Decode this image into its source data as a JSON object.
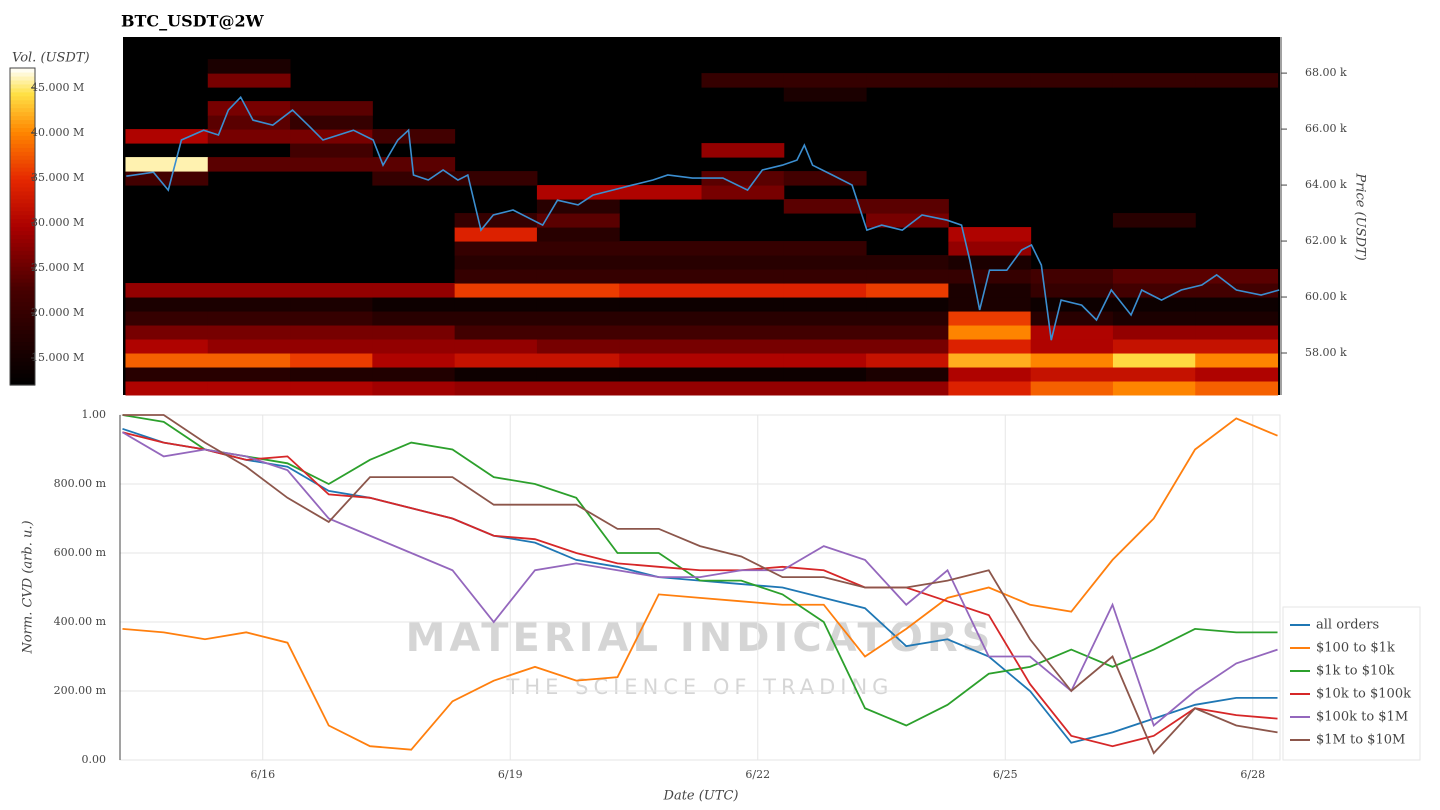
{
  "chart_data": [
    {
      "type": "heatmap",
      "title": "BTC_USDT@2W",
      "ylabel": "Price (USDT)",
      "xlim": [
        14.27,
        28.33
      ],
      "ylim": [
        56500,
        69290
      ],
      "yticks": [
        {
          "value": 58000,
          "label": "58.00 k"
        },
        {
          "value": 60000,
          "label": "60.00 k"
        },
        {
          "value": 62000,
          "label": "62.00 k"
        },
        {
          "value": 64000,
          "label": "64.00 k"
        },
        {
          "value": 66000,
          "label": "66.00 k"
        },
        {
          "value": 68000,
          "label": "68.00 k"
        }
      ],
      "colormap": "hot",
      "colorbar": {
        "label": "Vol. (USDT)",
        "lim": [
          12,
          47.2
        ],
        "ticks": [
          {
            "value": 15,
            "label": "15.000 M"
          },
          {
            "value": 20,
            "label": "20.000 M"
          },
          {
            "value": 25,
            "label": "25.000 M"
          },
          {
            "value": 30,
            "label": "30.000 M"
          },
          {
            "value": 35,
            "label": "35.000 M"
          },
          {
            "value": 40,
            "label": "40.000 M"
          },
          {
            "value": 45,
            "label": "45.000 M"
          }
        ]
      },
      "x_edges": [
        14.3,
        15.3,
        16.3,
        17.3,
        18.3,
        19.3,
        20.3,
        21.3,
        22.3,
        23.3,
        24.3,
        25.3,
        26.3,
        27.3,
        28.3
      ],
      "y_edges": [
        56500,
        57000,
        57500,
        58000,
        58500,
        59000,
        59500,
        60000,
        60500,
        61000,
        61500,
        62000,
        62500,
        63000,
        63500,
        64000,
        64500,
        65000,
        65500,
        66000,
        66500,
        67000,
        67500,
        68000,
        68500,
        69000
      ],
      "z": [
        [
          30,
          30,
          30,
          29,
          28,
          28,
          28,
          28,
          28,
          28,
          34,
          38,
          40,
          38
        ],
        [
          18,
          18,
          17,
          17,
          14,
          14,
          14,
          14,
          14,
          16,
          30,
          32,
          32,
          30
        ],
        [
          38,
          38,
          36,
          30,
          32,
          32,
          30,
          30,
          30,
          32,
          42,
          40,
          44,
          40
        ],
        [
          30,
          28,
          28,
          28,
          28,
          26,
          26,
          26,
          26,
          26,
          34,
          30,
          32,
          32
        ],
        [
          26,
          26,
          26,
          26,
          22,
          22,
          22,
          22,
          22,
          22,
          40,
          30,
          28,
          28
        ],
        [
          20,
          20,
          20,
          18,
          18,
          18,
          18,
          18,
          18,
          18,
          36,
          18,
          16,
          16
        ],
        [
          16,
          16,
          16,
          14,
          14,
          14,
          14,
          14,
          14,
          14,
          16,
          14,
          14,
          14
        ],
        [
          28,
          28,
          28,
          28,
          36,
          36,
          34,
          34,
          34,
          36,
          16,
          20,
          22,
          22
        ],
        [
          null,
          null,
          null,
          null,
          20,
          20,
          20,
          20,
          20,
          20,
          20,
          22,
          24,
          24
        ],
        [
          null,
          null,
          null,
          null,
          18,
          18,
          18,
          18,
          18,
          18,
          16,
          null,
          null,
          null
        ],
        [
          null,
          null,
          null,
          null,
          20,
          20,
          20,
          20,
          20,
          null,
          28,
          null,
          null,
          null
        ],
        [
          null,
          null,
          null,
          null,
          34,
          18,
          null,
          null,
          null,
          null,
          30,
          null,
          null,
          null
        ],
        [
          null,
          null,
          null,
          null,
          20,
          24,
          null,
          null,
          null,
          26,
          null,
          null,
          18,
          null
        ],
        [
          null,
          null,
          null,
          null,
          null,
          18,
          null,
          null,
          24,
          24,
          null,
          null,
          null,
          null
        ],
        [
          null,
          null,
          null,
          null,
          null,
          30,
          30,
          26,
          null,
          null,
          null,
          null,
          null,
          null
        ],
        [
          22,
          null,
          null,
          20,
          20,
          null,
          null,
          24,
          22,
          null,
          null,
          null,
          null,
          null
        ],
        [
          46,
          24,
          24,
          24,
          null,
          null,
          null,
          null,
          null,
          null,
          null,
          null,
          null,
          null
        ],
        [
          null,
          null,
          22,
          null,
          null,
          null,
          null,
          28,
          null,
          null,
          null,
          null,
          null,
          null
        ],
        [
          30,
          26,
          26,
          22,
          null,
          null,
          null,
          null,
          null,
          null,
          null,
          null,
          null,
          null
        ],
        [
          null,
          24,
          20,
          null,
          null,
          null,
          null,
          null,
          null,
          null,
          null,
          null,
          null,
          null
        ],
        [
          null,
          26,
          24,
          null,
          null,
          null,
          null,
          null,
          null,
          null,
          null,
          null,
          null,
          null
        ],
        [
          null,
          null,
          null,
          null,
          null,
          null,
          null,
          null,
          16,
          null,
          null,
          null,
          null,
          null
        ],
        [
          null,
          26,
          null,
          null,
          null,
          null,
          null,
          20,
          20,
          20,
          20,
          20,
          20,
          20
        ],
        [
          null,
          16,
          null,
          null,
          null,
          null,
          null,
          null,
          null,
          null,
          null,
          null,
          null,
          null
        ],
        [
          null,
          null,
          null,
          null,
          null,
          null,
          null,
          null,
          null,
          null,
          null,
          null,
          null,
          null
        ]
      ],
      "overlay": {
        "color": "#3b8ed0",
        "x": [
          14.31,
          14.64,
          14.82,
          14.98,
          15.25,
          15.43,
          15.55,
          15.7,
          15.85,
          16.09,
          16.33,
          16.52,
          16.7,
          17.07,
          17.31,
          17.43,
          17.61,
          17.74,
          17.8,
          17.98,
          18.16,
          18.34,
          18.46,
          18.62,
          18.77,
          19.01,
          19.25,
          19.37,
          19.55,
          19.8,
          19.98,
          20.22,
          20.46,
          20.71,
          20.89,
          21.19,
          21.56,
          21.86,
          22.04,
          22.28,
          22.46,
          22.55,
          22.65,
          22.89,
          23.13,
          23.31,
          23.49,
          23.74,
          23.98,
          24.28,
          24.46,
          24.56,
          24.68,
          24.8,
          25.01,
          25.19,
          25.31,
          25.43,
          25.55,
          25.67,
          25.92,
          26.1,
          26.28,
          26.52,
          26.65,
          26.89,
          27.13,
          27.38,
          27.56,
          27.8,
          28.1,
          28.32
        ],
        "values": [
          64320,
          64460,
          63820,
          65610,
          65960,
          65790,
          66680,
          67140,
          66320,
          66140,
          66680,
          66140,
          65610,
          65960,
          65610,
          64710,
          65610,
          65960,
          64360,
          64180,
          64540,
          64180,
          64360,
          62390,
          62930,
          63110,
          62750,
          62570,
          63460,
          63290,
          63640,
          63820,
          64000,
          64180,
          64360,
          64250,
          64250,
          63820,
          64540,
          64710,
          64890,
          65430,
          64710,
          64360,
          64000,
          62390,
          62570,
          62390,
          62930,
          62750,
          62570,
          61320,
          59540,
          60960,
          60960,
          61680,
          61860,
          61140,
          58460,
          59890,
          59710,
          59180,
          60250,
          59360,
          60250,
          59890,
          60250,
          60430,
          60790,
          60250,
          60070,
          60250
        ]
      }
    },
    {
      "type": "line",
      "xlabel": "Date (UTC)",
      "ylabel": "Norm. CVD (arb. u.)",
      "xlim": [
        14.27,
        28.33
      ],
      "ylim": [
        0,
        1
      ],
      "grid": true,
      "legend": "right",
      "xticks": [
        {
          "value": 16,
          "label": "6/16"
        },
        {
          "value": 19,
          "label": "6/19"
        },
        {
          "value": 22,
          "label": "6/22"
        },
        {
          "value": 25,
          "label": "6/25"
        },
        {
          "value": 28,
          "label": "6/28"
        }
      ],
      "yticks": [
        {
          "value": 0,
          "label": "0.00"
        },
        {
          "value": 0.2,
          "label": "200.00 m"
        },
        {
          "value": 0.4,
          "label": "400.00 m"
        },
        {
          "value": 0.6,
          "label": "600.00 m"
        },
        {
          "value": 0.8,
          "label": "800.00 m"
        },
        {
          "value": 1,
          "label": "1.00"
        }
      ],
      "watermark": {
        "title": "MATERIAL INDICATORS",
        "subtitle": "THE SCIENCE OF TRADING"
      },
      "x": [
        14.3,
        14.8,
        15.3,
        15.8,
        16.3,
        16.8,
        17.3,
        17.8,
        18.3,
        18.8,
        19.3,
        19.8,
        20.3,
        20.8,
        21.3,
        21.8,
        22.3,
        22.8,
        23.3,
        23.8,
        24.3,
        24.8,
        25.3,
        25.8,
        26.3,
        26.8,
        27.3,
        27.8,
        28.3
      ],
      "series": [
        {
          "name": "all orders",
          "color": "#1f77b4",
          "values": [
            0.96,
            0.92,
            0.9,
            0.87,
            0.85,
            0.78,
            0.76,
            0.73,
            0.7,
            0.65,
            0.63,
            0.58,
            0.56,
            0.53,
            0.52,
            0.51,
            0.5,
            0.47,
            0.44,
            0.33,
            0.35,
            0.3,
            0.2,
            0.05,
            0.08,
            0.12,
            0.16,
            0.18,
            0.18
          ]
        },
        {
          "name": "$100 to $1k",
          "color": "#ff7f0e",
          "values": [
            0.38,
            0.37,
            0.35,
            0.37,
            0.34,
            0.1,
            0.04,
            0.03,
            0.17,
            0.23,
            0.27,
            0.23,
            0.24,
            0.48,
            0.47,
            0.46,
            0.45,
            0.45,
            0.3,
            0.38,
            0.47,
            0.5,
            0.45,
            0.43,
            0.58,
            0.7,
            0.9,
            0.99,
            0.94
          ]
        },
        {
          "name": "$1k to $10k",
          "color": "#2ca02c",
          "values": [
            1.0,
            0.98,
            0.9,
            0.88,
            0.86,
            0.8,
            0.87,
            0.92,
            0.9,
            0.82,
            0.8,
            0.76,
            0.6,
            0.6,
            0.52,
            0.52,
            0.48,
            0.4,
            0.15,
            0.1,
            0.16,
            0.25,
            0.27,
            0.32,
            0.27,
            0.32,
            0.38,
            0.37,
            0.37
          ]
        },
        {
          "name": "$10k to $100k",
          "color": "#d62728",
          "values": [
            0.95,
            0.92,
            0.9,
            0.87,
            0.88,
            0.77,
            0.76,
            0.73,
            0.7,
            0.65,
            0.64,
            0.6,
            0.57,
            0.56,
            0.55,
            0.55,
            0.56,
            0.55,
            0.5,
            0.5,
            0.46,
            0.42,
            0.22,
            0.07,
            0.04,
            0.07,
            0.15,
            0.13,
            0.12
          ]
        },
        {
          "name": "$100k to $1M",
          "color": "#9467bd",
          "values": [
            0.95,
            0.88,
            0.9,
            0.88,
            0.84,
            0.7,
            0.65,
            0.6,
            0.55,
            0.4,
            0.55,
            0.57,
            0.55,
            0.53,
            0.53,
            0.55,
            0.55,
            0.62,
            0.58,
            0.45,
            0.55,
            0.3,
            0.3,
            0.2,
            0.45,
            0.1,
            0.2,
            0.28,
            0.32
          ]
        },
        {
          "name": "$1M to $10M",
          "color": "#8c564b",
          "values": [
            1.0,
            1.0,
            0.92,
            0.85,
            0.76,
            0.69,
            0.82,
            0.82,
            0.82,
            0.74,
            0.74,
            0.74,
            0.67,
            0.67,
            0.62,
            0.59,
            0.53,
            0.53,
            0.5,
            0.5,
            0.52,
            0.55,
            0.35,
            0.2,
            0.3,
            0.02,
            0.15,
            0.1,
            0.08
          ]
        }
      ]
    }
  ]
}
